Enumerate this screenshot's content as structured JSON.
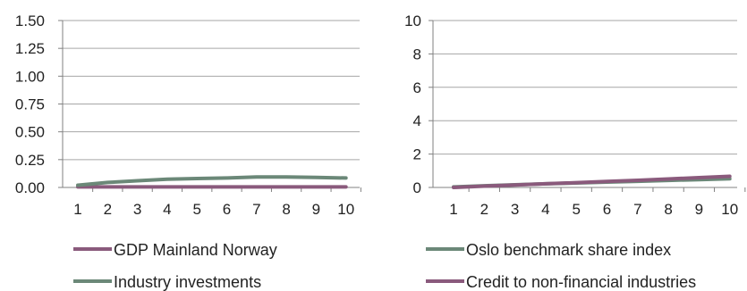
{
  "colors": {
    "gdp": "#8a5a7c",
    "industry": "#6b8878",
    "oslo": "#6b8878",
    "credit": "#8a5a7c",
    "grid": "#a6a6a6",
    "axis": "#808080"
  },
  "chart_data": [
    {
      "type": "line",
      "x": [
        1,
        2,
        3,
        4,
        5,
        6,
        7,
        8,
        9,
        10
      ],
      "ylim": [
        0,
        1.5
      ],
      "yticks": [
        "0.00",
        "0.25",
        "0.50",
        "0.75",
        "1.00",
        "1.25",
        "1.50"
      ],
      "xticks": [
        "1",
        "2",
        "3",
        "4",
        "5",
        "6",
        "7",
        "8",
        "9",
        "10"
      ],
      "grid": true,
      "legend_position": "bottom",
      "series": [
        {
          "name": "GDP Mainland Norway",
          "color": "#8a5a7c",
          "values": [
            0.005,
            0.005,
            0.005,
            0.005,
            0.005,
            0.005,
            0.005,
            0.005,
            0.005,
            0.005
          ]
        },
        {
          "name": "Industry investments",
          "color": "#6b8878",
          "values": [
            0.02,
            0.045,
            0.06,
            0.075,
            0.08,
            0.085,
            0.095,
            0.095,
            0.09,
            0.085
          ]
        }
      ]
    },
    {
      "type": "line",
      "x": [
        1,
        2,
        3,
        4,
        5,
        6,
        7,
        8,
        9,
        10
      ],
      "ylim": [
        0,
        10
      ],
      "yticks": [
        "0",
        "2",
        "4",
        "6",
        "8",
        "10"
      ],
      "xticks": [
        "1",
        "2",
        "3",
        "4",
        "5",
        "6",
        "7",
        "8",
        "9",
        "10"
      ],
      "grid": true,
      "legend_position": "bottom",
      "series": [
        {
          "name": "Oslo benchmark share index",
          "color": "#6b8878",
          "values": [
            0.03,
            0.1,
            0.16,
            0.22,
            0.27,
            0.32,
            0.37,
            0.42,
            0.47,
            0.52
          ]
        },
        {
          "name": "Credit to non-financial industries",
          "color": "#8a5a7c",
          "values": [
            0.0,
            0.08,
            0.15,
            0.22,
            0.29,
            0.36,
            0.43,
            0.51,
            0.59,
            0.67
          ]
        }
      ]
    }
  ]
}
